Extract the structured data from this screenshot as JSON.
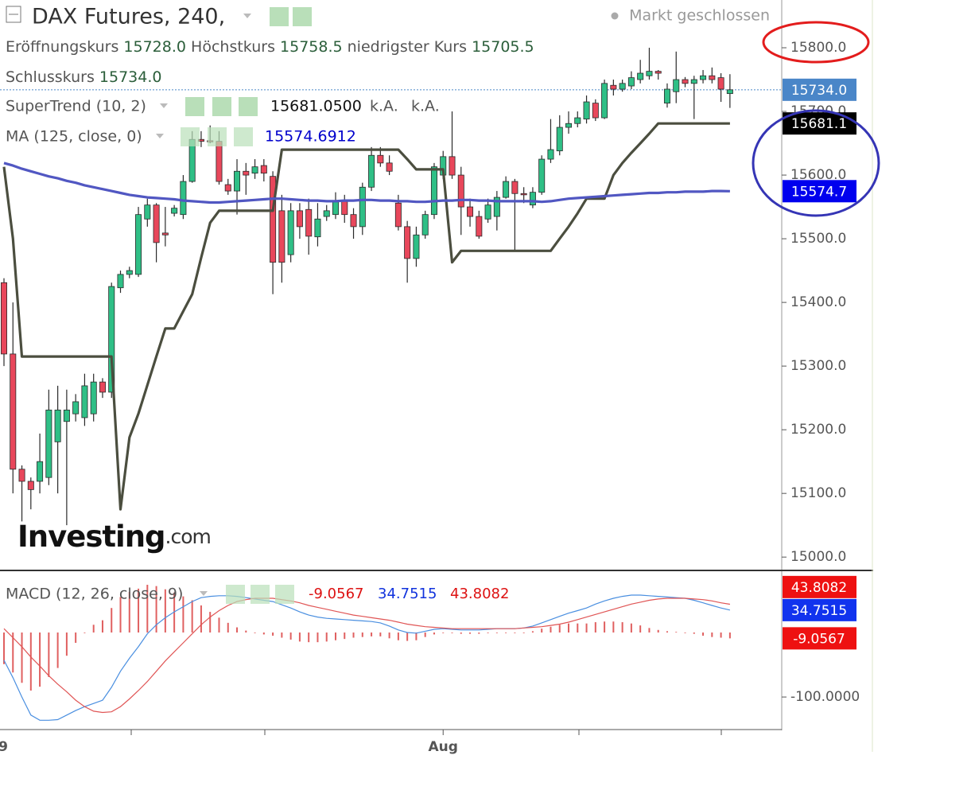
{
  "title": "DAX Futures, 240,",
  "status": "Markt geschlossen",
  "ohlc": [
    {
      "label": "Eröffnungskurs",
      "value": "15728.0"
    },
    {
      "label": "Höchstkurs",
      "value": "15758.5"
    },
    {
      "label": "niedrigster Kurs",
      "value": "15705.5"
    },
    {
      "label": "Schlusskurs",
      "value": "15734.0"
    }
  ],
  "indicators": [
    {
      "name": "SuperTrend (10, 2)",
      "values": [
        "15681.0500",
        "k.A.",
        "k.A."
      ]
    },
    {
      "name": "MA (125, close, 0)",
      "values": [
        "15574.6912"
      ]
    },
    {
      "name": "MACD (12, 26, close, 9)",
      "values": [
        "-9.0567",
        "34.7515",
        "43.8082"
      ]
    }
  ],
  "watermark": {
    "brand": "Investing",
    "suffix": ".com"
  },
  "chart_data": [
    {
      "type": "candlestick",
      "ylim": [
        14979,
        15875
      ],
      "yticks": [
        {
          "value": 15800,
          "label": "15800.0"
        },
        {
          "value": 15700,
          "label": "15700.0"
        },
        {
          "value": 15600,
          "label": "15600.0"
        },
        {
          "value": 15500,
          "label": "15500.0"
        },
        {
          "value": 15400,
          "label": "15400.0"
        },
        {
          "value": 15300,
          "label": "15300.0"
        },
        {
          "value": 15200,
          "label": "15200.0"
        },
        {
          "value": 15100,
          "label": "15100.0"
        },
        {
          "value": 15000,
          "label": "15000.0"
        }
      ],
      "up_color": "#2fbf86",
      "down_color": "#e8475b",
      "open": [
        15431,
        15319,
        15138,
        15119,
        15119,
        15125,
        15181,
        15213,
        15225,
        15219,
        15225,
        15275,
        15259,
        15423,
        15444,
        15444,
        15531,
        15553,
        15509,
        15540,
        15538,
        15590,
        15656,
        15654,
        15653,
        15585,
        15575,
        15606,
        15603,
        15615,
        15598,
        15544,
        15475,
        15544,
        15546,
        15503,
        15535,
        15538,
        15560,
        15538,
        15519,
        15581,
        15631,
        15619,
        15556,
        15519,
        15469,
        15506,
        15538,
        15600,
        15629,
        15600,
        15550,
        15535,
        15531,
        15535,
        15565,
        15590,
        15571,
        15553,
        15573,
        15625,
        15638,
        15675,
        15681,
        15688,
        15713,
        15690,
        15741,
        15735,
        15740,
        15750,
        15756,
        15763,
        15713,
        15731,
        15750,
        15744,
        15750,
        15756,
        15753,
        15728
      ],
      "high": [
        15438,
        15400,
        15144,
        15125,
        15194,
        15263,
        15269,
        15263,
        15256,
        15288,
        15288,
        15281,
        15431,
        15450,
        15456,
        15550,
        15563,
        15556,
        15550,
        15553,
        15600,
        15669,
        15669,
        15678,
        15669,
        15594,
        15625,
        15619,
        15625,
        15625,
        15606,
        15569,
        15556,
        15556,
        15563,
        15556,
        15553,
        15573,
        15569,
        15548,
        15588,
        15644,
        15644,
        15631,
        15569,
        15528,
        15519,
        15544,
        15619,
        15638,
        15700,
        15613,
        15563,
        15544,
        15563,
        15575,
        15598,
        15594,
        15581,
        15581,
        15631,
        15688,
        15694,
        15700,
        15700,
        15725,
        15719,
        15750,
        15750,
        15750,
        15763,
        15781,
        15800,
        15765,
        15744,
        15794,
        15754,
        15756,
        15765,
        15769,
        15760,
        15758.5
      ],
      "low": [
        15300,
        15100,
        15056,
        15075,
        15100,
        15113,
        15100,
        15050,
        15213,
        15206,
        15213,
        15250,
        15250,
        15415,
        15438,
        15440,
        15519,
        15463,
        15488,
        15535,
        15531,
        15588,
        15644,
        15650,
        15585,
        15569,
        15538,
        15569,
        15594,
        15590,
        15413,
        15431,
        15463,
        15500,
        15475,
        15488,
        15528,
        15531,
        15525,
        15500,
        15506,
        15575,
        15613,
        15600,
        15513,
        15431,
        15456,
        15500,
        15531,
        15594,
        15594,
        15506,
        15519,
        15500,
        15525,
        15513,
        15563,
        15481,
        15556,
        15548,
        15569,
        15619,
        15631,
        15665,
        15675,
        15681,
        15685,
        15688,
        15725,
        15731,
        15735,
        15744,
        15750,
        15750,
        15706,
        15713,
        15738,
        15688,
        15744,
        15744,
        15715,
        15705.5
      ],
      "close": [
        15319,
        15138,
        15119,
        15106,
        15150,
        15231,
        15231,
        15231,
        15244,
        15269,
        15275,
        15259,
        15425,
        15444,
        15450,
        15538,
        15553,
        15494,
        15506,
        15548,
        15590,
        15656,
        15653,
        15653,
        15590,
        15575,
        15606,
        15600,
        15613,
        15603,
        15463,
        15463,
        15544,
        15519,
        15504,
        15531,
        15544,
        15560,
        15538,
        15519,
        15581,
        15631,
        15619,
        15606,
        15519,
        15469,
        15506,
        15538,
        15613,
        15629,
        15600,
        15550,
        15535,
        15504,
        15553,
        15565,
        15590,
        15571,
        15569,
        15573,
        15625,
        15640,
        15675,
        15681,
        15690,
        15715,
        15690,
        15744,
        15735,
        15744,
        15753,
        15760,
        15763,
        15760,
        15735,
        15750,
        15744,
        15750,
        15756,
        15750,
        15735,
        15734
      ],
      "series": [
        {
          "color": "#4b4e3f",
          "values": [
            15613,
            15500,
            15315,
            15315,
            15315,
            15315,
            15315,
            15315,
            15315,
            15315,
            15315,
            15315,
            15315,
            15075,
            15188,
            15225,
            15270,
            15315,
            15359,
            15359,
            15386,
            15413,
            15470,
            15525,
            15544,
            15544,
            15544,
            15544,
            15544,
            15544,
            15544,
            15640,
            15640,
            15640,
            15640,
            15640,
            15640,
            15640,
            15640,
            15640,
            15640,
            15640,
            15640,
            15640,
            15640,
            15625,
            15609,
            15609,
            15609,
            15609,
            15463,
            15481,
            15481,
            15481,
            15481,
            15481,
            15481,
            15481,
            15481,
            15481,
            15481,
            15481,
            15500,
            15519,
            15540,
            15563,
            15563,
            15563,
            15600,
            15619,
            15635,
            15650,
            15665,
            15681,
            15681,
            15681,
            15681,
            15681,
            15681,
            15681,
            15681,
            15681.05
          ]
        },
        {
          "color": "#5157c2",
          "values": [
            15619,
            15615,
            15610,
            15606,
            15602,
            15598,
            15595,
            15591,
            15588,
            15584,
            15581,
            15578,
            15575,
            15572,
            15569,
            15567,
            15565,
            15564,
            15563,
            15562,
            15560,
            15559,
            15558,
            15557,
            15557,
            15558,
            15559,
            15560,
            15561,
            15562,
            15563,
            15563,
            15562,
            15561,
            15560,
            15560,
            15559,
            15559,
            15560,
            15560,
            15561,
            15561,
            15560,
            15560,
            15559,
            15559,
            15558,
            15558,
            15559,
            15560,
            15560,
            15561,
            15561,
            15560,
            15560,
            15559,
            15559,
            15559,
            15559,
            15559,
            15558,
            15559,
            15561,
            15563,
            15564,
            15565,
            15566,
            15567,
            15568,
            15569,
            15570,
            15571,
            15572,
            15572,
            15573,
            15573,
            15574,
            15574,
            15574,
            15575,
            15575,
            15574.6912
          ]
        }
      ],
      "price_labels": [
        {
          "value": 15734,
          "label": "15734.0",
          "color": "#4a86c8"
        },
        {
          "value": 15681.1,
          "label": "15681.1",
          "color": "#000000"
        },
        {
          "value": 15574.7,
          "label": "15574.7",
          "color": "#0000ee"
        }
      ]
    },
    {
      "type": "macd",
      "ylim": [
        -148,
        95
      ],
      "yticks": [
        {
          "value": -100,
          "label": "-100.0000"
        }
      ],
      "xticks": [
        {
          "value": -0.5,
          "label": "9"
        },
        {
          "value": 49,
          "label": "Aug"
        }
      ],
      "series": [
        {
          "color": "#4a8fe0",
          "values": [
            -43,
            -70,
            -100,
            -128,
            -136,
            -136,
            -135,
            -128,
            -121,
            -115,
            -110,
            -105,
            -85,
            -60,
            -40,
            -22,
            -2,
            12,
            23,
            32,
            40,
            48,
            54,
            56,
            57,
            57,
            56,
            54,
            52,
            50,
            48,
            43,
            38,
            32,
            27,
            24,
            22,
            21,
            20,
            19,
            18,
            17,
            15,
            10,
            4,
            0,
            -1,
            2,
            5,
            6,
            5,
            4,
            4,
            4,
            5,
            6,
            6,
            6,
            7,
            10,
            15,
            20,
            25,
            30,
            34,
            38,
            44,
            49,
            53,
            56,
            58,
            58,
            57,
            56,
            55,
            54,
            53,
            50,
            46,
            42,
            38,
            34.7515
          ]
        },
        {
          "color": "#e05555",
          "values": [
            6,
            -8,
            -22,
            -38,
            -52,
            -67,
            -80,
            -92,
            -105,
            -115,
            -122,
            -124,
            -123,
            -115,
            -103,
            -90,
            -76,
            -60,
            -44,
            -30,
            -16,
            -2,
            12,
            24,
            34,
            42,
            48,
            51,
            53,
            53,
            53,
            51,
            49,
            46,
            42,
            39,
            36,
            33,
            30,
            27,
            25,
            23,
            21,
            19,
            16,
            13,
            11,
            9,
            8,
            7,
            6,
            6,
            6,
            6,
            6,
            6,
            6,
            6,
            7,
            8,
            9,
            11,
            13,
            16,
            20,
            24,
            28,
            32,
            36,
            40,
            44,
            47,
            50,
            52,
            53,
            53,
            53,
            52,
            51,
            49,
            46,
            43.8082
          ]
        }
      ],
      "histogram": {
        "color": "#e06060",
        "values": [
          -49,
          -62,
          -78,
          -90,
          -84,
          -69,
          -55,
          -36,
          -16,
          0,
          12,
          19,
          38,
          55,
          63,
          68,
          74,
          72,
          67,
          62,
          56,
          50,
          42,
          32,
          23,
          15,
          8,
          3,
          -1,
          -3,
          -5,
          -8,
          -11,
          -14,
          -15,
          -15,
          -14,
          -12,
          -10,
          -8,
          -7,
          -6,
          -6,
          -9,
          -12,
          -13,
          -12,
          -7,
          -3,
          -1,
          -1,
          -2,
          -2,
          -2,
          -1,
          0,
          0,
          0,
          0,
          2,
          6,
          9,
          12,
          14,
          14,
          14,
          16,
          17,
          17,
          16,
          14,
          11,
          7,
          4,
          2,
          1,
          0,
          -2,
          -5,
          -7,
          -8,
          -9.0567
        ]
      },
      "price_labels": [
        {
          "value": 43.8082,
          "label": "43.8082",
          "color": "#ee1111"
        },
        {
          "value": 34.7515,
          "label": "34.7515",
          "color": "#1133ee"
        },
        {
          "value": -9.0567,
          "label": "-9.0567",
          "color": "#ee1111"
        }
      ]
    }
  ]
}
